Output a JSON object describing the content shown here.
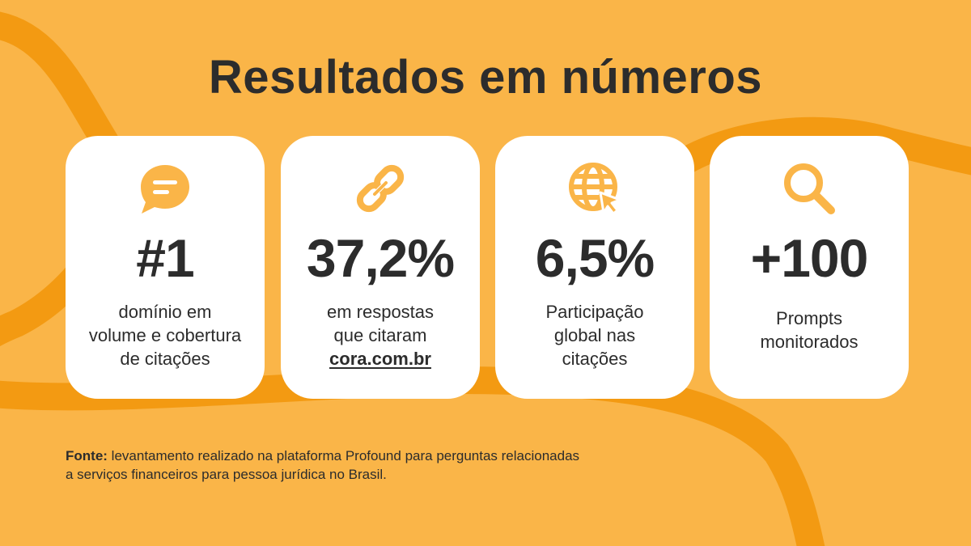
{
  "title": "Resultados em números",
  "colors": {
    "background": "#FAB548",
    "wave": "#F39A12",
    "icon": "#FAB548",
    "text": "#2C2C2C",
    "card": "#FFFFFF"
  },
  "cards": [
    {
      "icon": "chat-bubble-icon",
      "stat": "#1",
      "lines": [
        "domínio em",
        "volume e cobertura",
        "de citações"
      ]
    },
    {
      "icon": "link-icon",
      "stat": "37,2%",
      "lines": [
        "em respostas",
        "que citaram"
      ],
      "link": "cora.com.br"
    },
    {
      "icon": "globe-cursor-icon",
      "stat": "6,5%",
      "lines": [
        "Participação",
        "global nas",
        "citações"
      ]
    },
    {
      "icon": "search-icon",
      "stat": "+100",
      "lines": [
        "Prompts",
        "monitorados"
      ]
    }
  ],
  "source": {
    "label": "Fonte:",
    "line1": "levantamento realizado na plataforma Profound para perguntas relacionadas",
    "line2": "a serviços financeiros para pessoa jurídica no Brasil."
  }
}
